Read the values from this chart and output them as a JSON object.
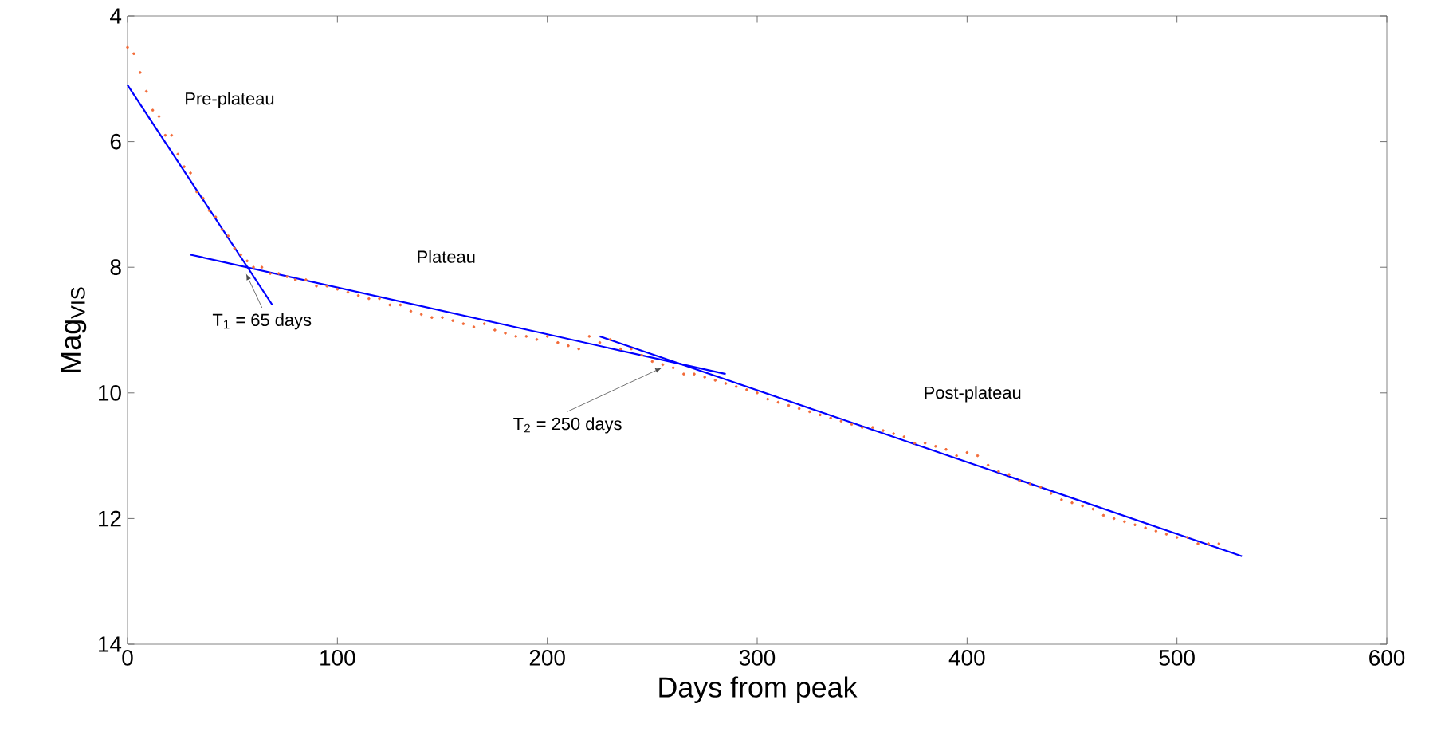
{
  "chart_data": {
    "type": "scatter",
    "xlabel": "Days from peak",
    "ylabel": "Mag$_{VIS}$",
    "xlim": [
      0,
      600
    ],
    "ylim": [
      14,
      4
    ],
    "xticks": [
      0,
      100,
      200,
      300,
      400,
      500,
      600
    ],
    "yticks": [
      4,
      6,
      8,
      10,
      12,
      14
    ],
    "grid": false,
    "series": [
      {
        "marker": "circle",
        "color": "#f26b38",
        "x": [
          0,
          3,
          6,
          9,
          12,
          15,
          18,
          21,
          24,
          27,
          30,
          33,
          36,
          39,
          42,
          45,
          48,
          51,
          54,
          57,
          60,
          64,
          68,
          72,
          76,
          80,
          85,
          90,
          95,
          100,
          105,
          110,
          115,
          120,
          125,
          130,
          135,
          140,
          145,
          150,
          155,
          160,
          165,
          170,
          175,
          180,
          185,
          190,
          195,
          200,
          205,
          210,
          215,
          220,
          225,
          230,
          235,
          240,
          245,
          250,
          255,
          260,
          265,
          270,
          275,
          280,
          285,
          290,
          295,
          300,
          305,
          310,
          315,
          320,
          325,
          330,
          335,
          340,
          345,
          350,
          355,
          360,
          365,
          370,
          375,
          380,
          385,
          390,
          395,
          400,
          405,
          410,
          415,
          420,
          425,
          430,
          435,
          440,
          445,
          450,
          455,
          460,
          465,
          470,
          475,
          480,
          485,
          490,
          495,
          500,
          505,
          510,
          515,
          520
        ],
        "values": [
          4.5,
          4.6,
          4.9,
          5.2,
          5.5,
          5.6,
          5.9,
          5.9,
          6.2,
          6.4,
          6.5,
          6.8,
          6.9,
          7.1,
          7.2,
          7.4,
          7.5,
          7.7,
          7.8,
          7.9,
          8.0,
          8.0,
          8.1,
          8.1,
          8.15,
          8.2,
          8.2,
          8.3,
          8.3,
          8.35,
          8.4,
          8.45,
          8.5,
          8.5,
          8.6,
          8.6,
          8.7,
          8.75,
          8.8,
          8.8,
          8.85,
          8.9,
          8.95,
          8.9,
          9.0,
          9.05,
          9.1,
          9.1,
          9.15,
          9.1,
          9.2,
          9.25,
          9.3,
          9.1,
          9.2,
          9.15,
          9.3,
          9.3,
          9.4,
          9.5,
          9.55,
          9.6,
          9.7,
          9.7,
          9.75,
          9.8,
          9.85,
          9.9,
          9.95,
          10.0,
          10.1,
          10.15,
          10.2,
          10.25,
          10.3,
          10.35,
          10.4,
          10.45,
          10.5,
          10.55,
          10.55,
          10.6,
          10.65,
          10.7,
          10.8,
          10.8,
          10.85,
          10.9,
          11.0,
          10.95,
          11.0,
          11.15,
          11.25,
          11.3,
          11.4,
          11.45,
          11.5,
          11.6,
          11.7,
          11.75,
          11.8,
          11.85,
          11.95,
          12.0,
          12.05,
          12.1,
          12.15,
          12.2,
          12.25,
          12.3,
          12.3,
          12.4,
          12.4,
          12.4
        ]
      },
      {
        "type": "line",
        "marker": "none",
        "line_style": "solid",
        "color": "#0000ff",
        "x": [
          0,
          69
        ],
        "values": [
          5.1,
          8.6
        ]
      },
      {
        "type": "line",
        "marker": "none",
        "line_style": "solid",
        "color": "#0000ff",
        "x": [
          30,
          285
        ],
        "values": [
          7.8,
          9.7
        ]
      },
      {
        "type": "line",
        "marker": "none",
        "line_style": "solid",
        "color": "#0000ff",
        "x": [
          225,
          531
        ],
        "values": [
          9.1,
          12.6
        ]
      }
    ],
    "annotations": [
      "Pre-plateau",
      "Plateau",
      "Post-plateau",
      {
        "text": "T$_{1}$ = 65 days",
        "x": 58,
        "y": 8.0
      },
      {
        "text": "T$_{2}$ = 250 days",
        "x": 256,
        "y": 9.5
      }
    ]
  }
}
